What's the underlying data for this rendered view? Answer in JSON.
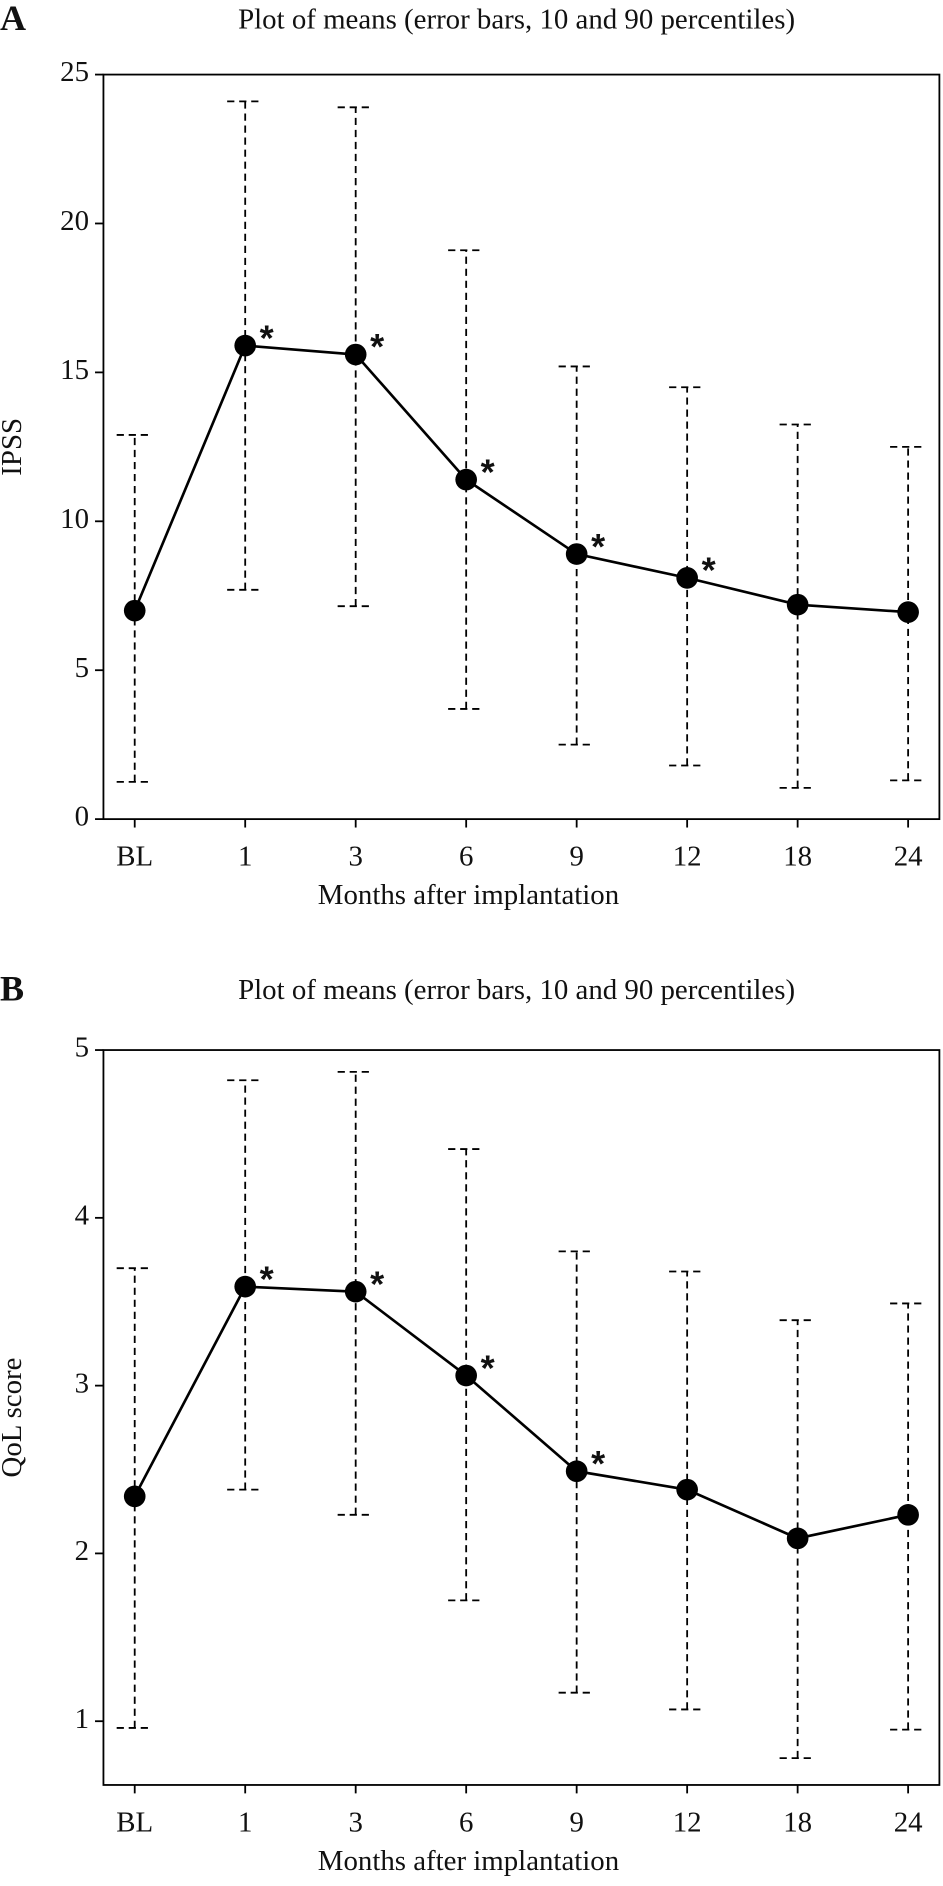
{
  "chart_data": [
    {
      "type": "line",
      "panel": "A",
      "title": "Plot of means (error bars, 10 and 90 percentiles)",
      "x_label": "Months after implantation",
      "y_label": "IPSS",
      "categories": [
        "BL",
        "1",
        "3",
        "6",
        "9",
        "12",
        "18",
        "24"
      ],
      "values": [
        7.0,
        15.9,
        15.6,
        11.4,
        8.9,
        8.1,
        7.2,
        6.95
      ],
      "lower": [
        1.25,
        7.7,
        7.15,
        3.7,
        2.5,
        1.8,
        1.05,
        1.3
      ],
      "upper": [
        12.9,
        24.1,
        23.9,
        19.1,
        15.2,
        14.5,
        13.25,
        12.5
      ],
      "annotations": [
        null,
        "*",
        "*",
        "*",
        "*",
        "*",
        null,
        null
      ],
      "color": "#000000",
      "ylim": [
        0,
        25
      ],
      "yticks": [
        0,
        5,
        10,
        15,
        20,
        25
      ]
    },
    {
      "type": "line",
      "panel": "B",
      "title": "Plot of means (error bars, 10 and 90 percentiles)",
      "x_label": "Months after implantation",
      "y_label": "QoL score",
      "categories": [
        "BL",
        "1",
        "3",
        "6",
        "9",
        "12",
        "18",
        "24"
      ],
      "values": [
        2.34,
        3.59,
        3.56,
        3.06,
        2.49,
        2.38,
        2.09,
        2.23
      ],
      "lower": [
        0.96,
        2.38,
        2.23,
        1.72,
        1.17,
        1.07,
        0.78,
        0.95
      ],
      "upper": [
        3.7,
        4.82,
        4.87,
        4.41,
        3.8,
        3.68,
        3.39,
        3.49
      ],
      "annotations": [
        null,
        "*",
        "*",
        "*",
        "*",
        null,
        null,
        null
      ],
      "color": "#000000",
      "ylim": [
        0.62,
        5
      ],
      "yticks": [
        1,
        2,
        3,
        4,
        5
      ]
    }
  ]
}
